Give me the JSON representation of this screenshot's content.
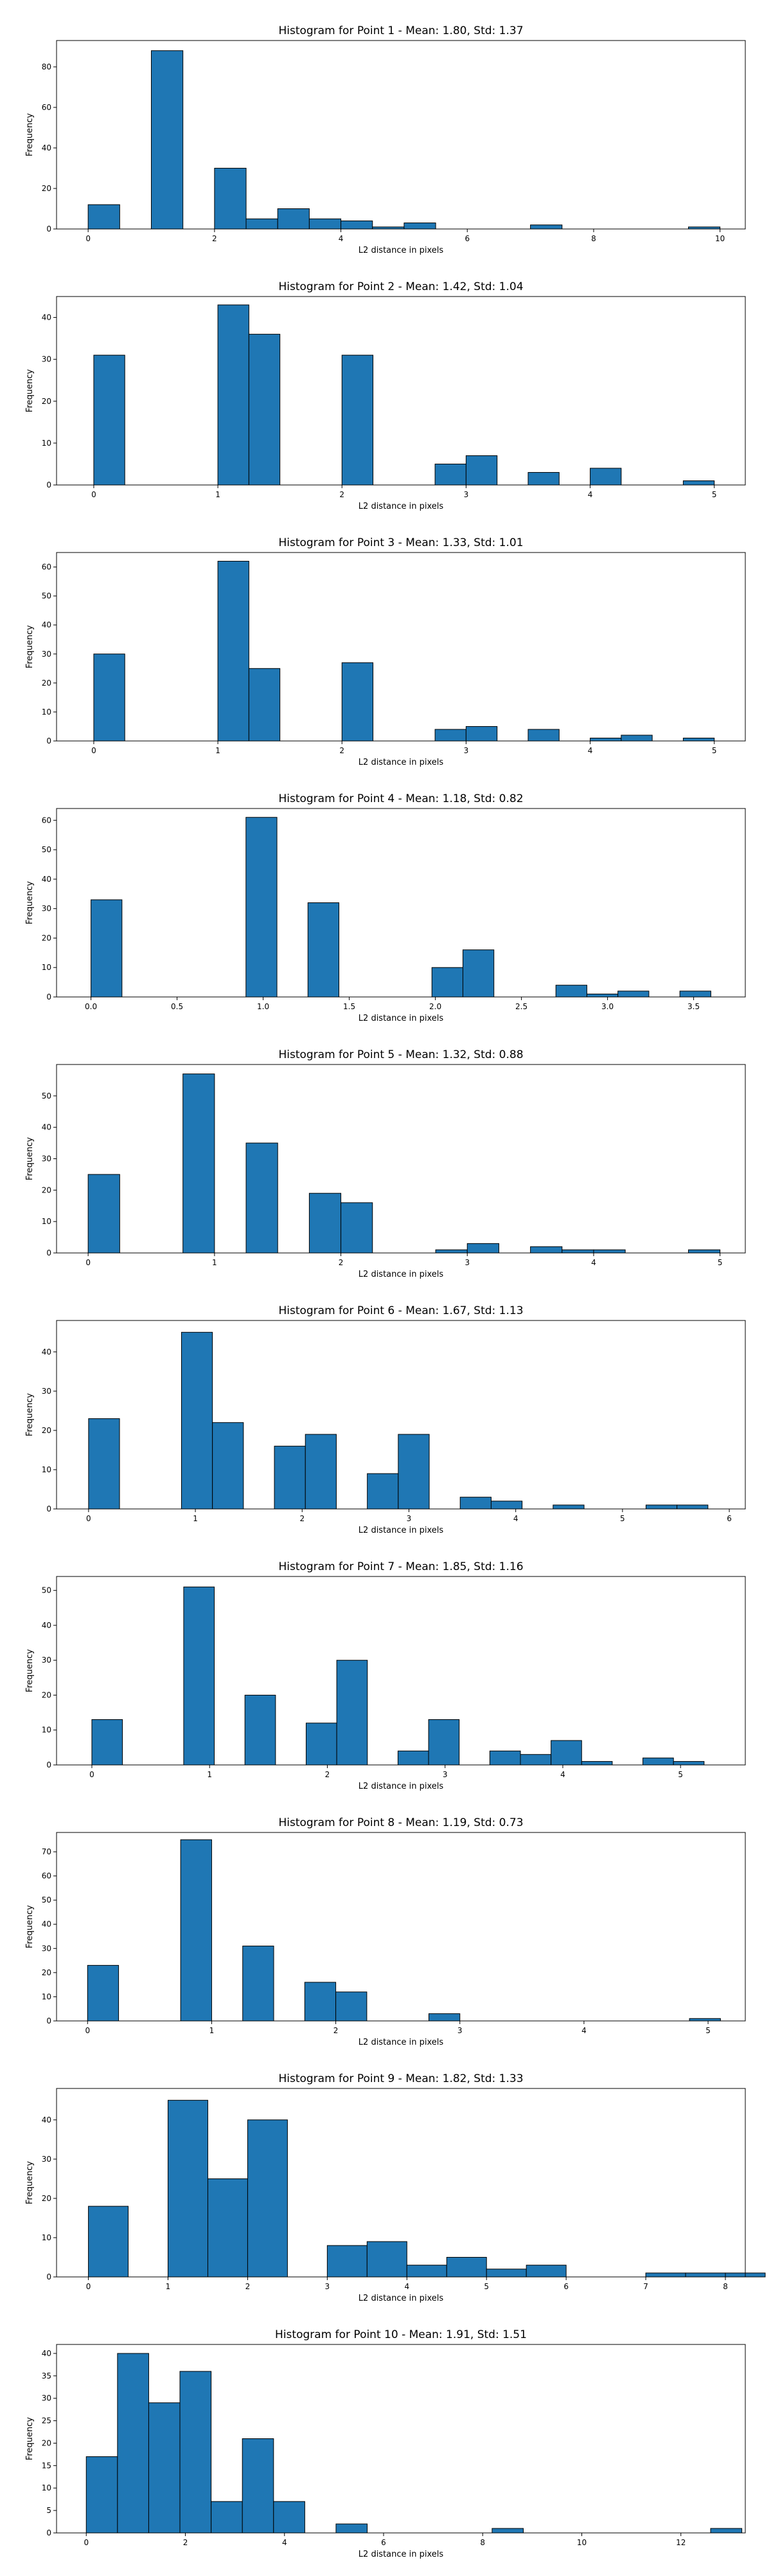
{
  "chart_data": [
    {
      "type": "bar",
      "title": "Histogram for Point 1 - Mean: 1.80, Std: 1.37",
      "xlabel": "L2 distance in pixels",
      "ylabel": "Frequency",
      "xlim": [
        -0.5,
        10.4
      ],
      "ylim": [
        0,
        93
      ],
      "xticks": [
        0,
        2,
        4,
        6,
        8,
        10
      ],
      "xtick_labels": [
        "0",
        "2",
        "4",
        "6",
        "8",
        "10"
      ],
      "yticks": [
        0,
        20,
        40,
        60,
        80
      ],
      "bin_width": 0.5,
      "bars": [
        {
          "x": 0.0,
          "value": 12
        },
        {
          "x": 1.0,
          "value": 88
        },
        {
          "x": 2.0,
          "value": 30
        },
        {
          "x": 2.5,
          "value": 5
        },
        {
          "x": 3.0,
          "value": 10
        },
        {
          "x": 3.5,
          "value": 5
        },
        {
          "x": 4.0,
          "value": 4
        },
        {
          "x": 4.5,
          "value": 1
        },
        {
          "x": 5.0,
          "value": 3
        },
        {
          "x": 7.0,
          "value": 2
        },
        {
          "x": 9.5,
          "value": 1
        }
      ]
    },
    {
      "type": "bar",
      "title": "Histogram for Point 2 - Mean: 1.42, Std: 1.04",
      "xlabel": "L2 distance in pixels",
      "ylabel": "Frequency",
      "xlim": [
        -0.3,
        5.25
      ],
      "ylim": [
        0,
        45
      ],
      "xticks": [
        0,
        1,
        2,
        3,
        4,
        5
      ],
      "xtick_labels": [
        "0",
        "1",
        "2",
        "3",
        "4",
        "5"
      ],
      "yticks": [
        0,
        10,
        20,
        30,
        40
      ],
      "bin_width": 0.25,
      "bars": [
        {
          "x": 0.0,
          "value": 31
        },
        {
          "x": 1.0,
          "value": 43
        },
        {
          "x": 1.25,
          "value": 36
        },
        {
          "x": 2.0,
          "value": 31
        },
        {
          "x": 2.75,
          "value": 5
        },
        {
          "x": 3.0,
          "value": 7
        },
        {
          "x": 3.5,
          "value": 3
        },
        {
          "x": 4.0,
          "value": 4
        },
        {
          "x": 4.75,
          "value": 1
        }
      ]
    },
    {
      "type": "bar",
      "title": "Histogram for Point 3 - Mean: 1.33, Std: 1.01",
      "xlabel": "L2 distance in pixels",
      "ylabel": "Frequency",
      "xlim": [
        -0.3,
        5.25
      ],
      "ylim": [
        0,
        65
      ],
      "xticks": [
        0,
        1,
        2,
        3,
        4,
        5
      ],
      "xtick_labels": [
        "0",
        "1",
        "2",
        "3",
        "4",
        "5"
      ],
      "yticks": [
        0,
        10,
        20,
        30,
        40,
        50,
        60
      ],
      "bin_width": 0.25,
      "bars": [
        {
          "x": 0.0,
          "value": 30
        },
        {
          "x": 1.0,
          "value": 62
        },
        {
          "x": 1.25,
          "value": 25
        },
        {
          "x": 2.0,
          "value": 27
        },
        {
          "x": 2.75,
          "value": 4
        },
        {
          "x": 3.0,
          "value": 5
        },
        {
          "x": 3.5,
          "value": 4
        },
        {
          "x": 4.0,
          "value": 1
        },
        {
          "x": 4.25,
          "value": 2
        },
        {
          "x": 4.75,
          "value": 1
        }
      ]
    },
    {
      "type": "bar",
      "title": "Histogram for Point 4 - Mean: 1.18, Std: 0.82",
      "xlabel": "L2 distance in pixels",
      "ylabel": "Frequency",
      "xlim": [
        -0.2,
        3.8
      ],
      "ylim": [
        0,
        64
      ],
      "xticks": [
        0,
        0.5,
        1,
        1.5,
        2,
        2.5,
        3,
        3.5
      ],
      "xtick_labels": [
        "0.0",
        "0.5",
        "1.0",
        "1.5",
        "2.0",
        "2.5",
        "3.0",
        "3.5"
      ],
      "yticks": [
        0,
        10,
        20,
        30,
        40,
        50,
        60
      ],
      "bin_width": 0.18,
      "bars": [
        {
          "x": 0.0,
          "value": 33
        },
        {
          "x": 0.9,
          "value": 61
        },
        {
          "x": 1.26,
          "value": 32
        },
        {
          "x": 1.98,
          "value": 10
        },
        {
          "x": 2.16,
          "value": 16
        },
        {
          "x": 2.7,
          "value": 4
        },
        {
          "x": 2.88,
          "value": 1
        },
        {
          "x": 3.06,
          "value": 2
        },
        {
          "x": 3.42,
          "value": 2
        }
      ]
    },
    {
      "type": "bar",
      "title": "Histogram for Point 5 - Mean: 1.32, Std: 0.88",
      "xlabel": "L2 distance in pixels",
      "ylabel": "Frequency",
      "xlim": [
        -0.25,
        5.2
      ],
      "ylim": [
        0,
        60
      ],
      "xticks": [
        0,
        1,
        2,
        3,
        4,
        5
      ],
      "xtick_labels": [
        "0",
        "1",
        "2",
        "3",
        "4",
        "5"
      ],
      "yticks": [
        0,
        10,
        20,
        30,
        40,
        50
      ],
      "bin_width": 0.25,
      "bars": [
        {
          "x": 0.0,
          "value": 25
        },
        {
          "x": 0.75,
          "value": 57
        },
        {
          "x": 1.25,
          "value": 35
        },
        {
          "x": 1.75,
          "value": 19
        },
        {
          "x": 2.0,
          "value": 16
        },
        {
          "x": 2.75,
          "value": 1
        },
        {
          "x": 3.0,
          "value": 3
        },
        {
          "x": 3.5,
          "value": 2
        },
        {
          "x": 3.75,
          "value": 1
        },
        {
          "x": 4.0,
          "value": 1
        },
        {
          "x": 4.75,
          "value": 1
        }
      ]
    },
    {
      "type": "bar",
      "title": "Histogram for Point 6 - Mean: 1.67, Std: 1.13",
      "xlabel": "L2 distance in pixels",
      "ylabel": "Frequency",
      "xlim": [
        -0.3,
        6.15
      ],
      "ylim": [
        0,
        48
      ],
      "xticks": [
        0,
        1,
        2,
        3,
        4,
        5,
        6
      ],
      "xtick_labels": [
        "0",
        "1",
        "2",
        "3",
        "4",
        "5",
        "6"
      ],
      "yticks": [
        0,
        10,
        20,
        30,
        40
      ],
      "bin_width": 0.29,
      "bars": [
        {
          "x": 0.0,
          "value": 23
        },
        {
          "x": 0.87,
          "value": 45
        },
        {
          "x": 1.16,
          "value": 22
        },
        {
          "x": 1.74,
          "value": 16
        },
        {
          "x": 2.03,
          "value": 19
        },
        {
          "x": 2.61,
          "value": 9
        },
        {
          "x": 2.9,
          "value": 19
        },
        {
          "x": 3.48,
          "value": 3
        },
        {
          "x": 3.77,
          "value": 2
        },
        {
          "x": 4.35,
          "value": 1
        },
        {
          "x": 5.22,
          "value": 1
        },
        {
          "x": 5.51,
          "value": 1
        }
      ]
    },
    {
      "type": "bar",
      "title": "Histogram for Point 7 - Mean: 1.85, Std: 1.16",
      "xlabel": "L2 distance in pixels",
      "ylabel": "Frequency",
      "xlim": [
        -0.3,
        5.55
      ],
      "ylim": [
        0,
        54
      ],
      "xticks": [
        0,
        1,
        2,
        3,
        4,
        5
      ],
      "xtick_labels": [
        "0",
        "1",
        "2",
        "3",
        "4",
        "5"
      ],
      "yticks": [
        0,
        10,
        20,
        30,
        40,
        50
      ],
      "bin_width": 0.26,
      "bars": [
        {
          "x": 0.0,
          "value": 13
        },
        {
          "x": 0.78,
          "value": 51
        },
        {
          "x": 1.3,
          "value": 20
        },
        {
          "x": 1.82,
          "value": 12
        },
        {
          "x": 2.08,
          "value": 30
        },
        {
          "x": 2.6,
          "value": 4
        },
        {
          "x": 2.86,
          "value": 13
        },
        {
          "x": 3.38,
          "value": 4
        },
        {
          "x": 3.64,
          "value": 3
        },
        {
          "x": 3.9,
          "value": 7
        },
        {
          "x": 4.16,
          "value": 1
        },
        {
          "x": 4.68,
          "value": 2
        },
        {
          "x": 4.94,
          "value": 1
        }
      ]
    },
    {
      "type": "bar",
      "title": "Histogram for Point 8 - Mean: 1.19, Std: 0.73",
      "xlabel": "L2 distance in pixels",
      "ylabel": "Frequency",
      "xlim": [
        -0.25,
        5.3
      ],
      "ylim": [
        0,
        78
      ],
      "xticks": [
        0,
        1,
        2,
        3,
        4,
        5
      ],
      "xtick_labels": [
        "0",
        "1",
        "2",
        "3",
        "4",
        "5"
      ],
      "yticks": [
        0,
        10,
        20,
        30,
        40,
        50,
        60,
        70
      ],
      "bin_width": 0.25,
      "bars": [
        {
          "x": 0.0,
          "value": 23
        },
        {
          "x": 0.75,
          "value": 75
        },
        {
          "x": 1.25,
          "value": 31
        },
        {
          "x": 1.75,
          "value": 16
        },
        {
          "x": 2.0,
          "value": 12
        },
        {
          "x": 2.75,
          "value": 3
        },
        {
          "x": 4.85,
          "value": 1
        }
      ]
    },
    {
      "type": "bar",
      "title": "Histogram for Point 9 - Mean: 1.82, Std: 1.33",
      "xlabel": "L2 distance in pixels",
      "ylabel": "Frequency",
      "xlim": [
        -0.4,
        8.25
      ],
      "ylim": [
        0,
        48
      ],
      "xticks": [
        0,
        1,
        2,
        3,
        4,
        5,
        6,
        7,
        8
      ],
      "xtick_labels": [
        "0",
        "1",
        "2",
        "3",
        "4",
        "5",
        "6",
        "7",
        "8"
      ],
      "yticks": [
        0,
        10,
        20,
        30,
        40
      ],
      "bin_width": 0.5,
      "bars": [
        {
          "x": 0.0,
          "value": 18
        },
        {
          "x": 1.0,
          "value": 45
        },
        {
          "x": 1.5,
          "value": 25
        },
        {
          "x": 2.0,
          "value": 40
        },
        {
          "x": 3.0,
          "value": 8
        },
        {
          "x": 3.5,
          "value": 9
        },
        {
          "x": 4.0,
          "value": 3
        },
        {
          "x": 4.5,
          "value": 5
        },
        {
          "x": 5.0,
          "value": 2
        },
        {
          "x": 5.5,
          "value": 3
        },
        {
          "x": 7.0,
          "value": 1
        },
        {
          "x": 7.5,
          "value": 1
        },
        {
          "x": 8.0,
          "value": 1
        }
      ]
    },
    {
      "type": "bar",
      "title": "Histogram for Point 10 - Mean: 1.91, Std: 1.51",
      "xlabel": "L2 distance in pixels",
      "ylabel": "Frequency",
      "xlim": [
        -0.6,
        13.3
      ],
      "ylim": [
        0,
        42
      ],
      "xticks": [
        0,
        2,
        4,
        6,
        8,
        10,
        12
      ],
      "xtick_labels": [
        "0",
        "2",
        "4",
        "6",
        "8",
        "10",
        "12"
      ],
      "yticks": [
        0,
        5,
        10,
        15,
        20,
        25,
        30,
        35,
        40
      ],
      "bin_width": 0.63,
      "bars": [
        {
          "x": 0.0,
          "value": 17
        },
        {
          "x": 0.63,
          "value": 40
        },
        {
          "x": 1.26,
          "value": 29
        },
        {
          "x": 1.89,
          "value": 36
        },
        {
          "x": 2.52,
          "value": 7
        },
        {
          "x": 3.15,
          "value": 21
        },
        {
          "x": 3.78,
          "value": 7
        },
        {
          "x": 5.04,
          "value": 2
        },
        {
          "x": 8.19,
          "value": 1
        },
        {
          "x": 12.6,
          "value": 1
        }
      ]
    }
  ]
}
